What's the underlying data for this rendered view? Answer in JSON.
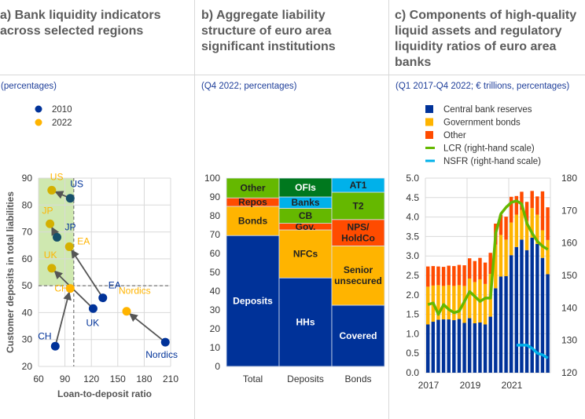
{
  "panels": {
    "a": {
      "title_lines": [
        "a) Bank liquidity indicators",
        "across selected regions"
      ],
      "subtitle": "(percentages)"
    },
    "b": {
      "title_lines": [
        "b) Aggregate liability",
        "structure of euro area",
        "significant institutions"
      ],
      "subtitle": "(Q4 2022; percentages)"
    },
    "c": {
      "title_lines": [
        "c) Components of high-quality",
        "liquid assets and regulatory",
        "liquidity ratios of euro area",
        "banks"
      ],
      "subtitle": "(Q1 2017-Q4 2022; € trillions, percentages)"
    }
  },
  "colors": {
    "navy": "#003299",
    "teal": "#17506a",
    "gold": "#d4b000",
    "yellow": "#ffb400",
    "orange": "#ff4b00",
    "green": "#65b800",
    "darkgreen": "#00781e",
    "cyan": "#00b1ea",
    "shade": "#cfe8b0",
    "grid": "#d9d9d9",
    "axis_text": "#333333"
  },
  "chart_data": [
    {
      "type": "scatter",
      "title": "Bank liquidity indicators across selected regions",
      "xlabel": "Loan-to-deposit ratio",
      "ylabel": "Customer deposits in total liabilities",
      "xlim": [
        60,
        210
      ],
      "ylim": [
        20,
        90
      ],
      "xticks": [
        60,
        90,
        120,
        150,
        180,
        210
      ],
      "yticks": [
        20,
        30,
        40,
        50,
        60,
        70,
        80,
        90
      ],
      "thresholds": {
        "x": 100,
        "y": 50
      },
      "shaded_region": {
        "x": [
          60,
          100
        ],
        "y": [
          50,
          90
        ]
      },
      "grid": true,
      "legend": {
        "position": "top-left",
        "entries": [
          {
            "label": "2010",
            "color": "#003299"
          },
          {
            "label": "2022",
            "color": "#ffb400"
          }
        ]
      },
      "points": [
        {
          "region": "US",
          "x2010": 96,
          "y2010": 82.5,
          "x2022": 75,
          "y2022": 85.5
        },
        {
          "region": "JP",
          "x2010": 81,
          "y2010": 68,
          "x2022": 73,
          "y2022": 73
        },
        {
          "region": "EA",
          "x2010": 133,
          "y2010": 45.5,
          "x2022": 95,
          "y2022": 64.5
        },
        {
          "region": "UK",
          "x2010": 122,
          "y2010": 41.5,
          "x2022": 75,
          "y2022": 56.5
        },
        {
          "region": "CH",
          "x2010": 79,
          "y2010": 27.5,
          "x2022": 96,
          "y2022": 49
        },
        {
          "region": "Nordics",
          "x2010": 204,
          "y2010": 29,
          "x2022": 160,
          "y2022": 40.5
        }
      ]
    },
    {
      "type": "bar",
      "title": "Aggregate liability structure of euro area significant institutions",
      "ylim": [
        0,
        100
      ],
      "yticks": [
        0,
        10,
        20,
        30,
        40,
        50,
        60,
        70,
        80,
        90,
        100
      ],
      "categories": [
        "Total",
        "Deposits",
        "Bonds"
      ],
      "stacks": [
        [
          {
            "label": "Deposits",
            "value": 69.5,
            "color": "#003299",
            "text": "#ffffff"
          },
          {
            "label": "Bonds",
            "value": 15.5,
            "color": "#ffb400",
            "text": "#222222"
          },
          {
            "label": "Repos",
            "value": 4.5,
            "color": "#ff4b00",
            "text": "#222222"
          },
          {
            "label": "Other",
            "value": 10.5,
            "color": "#65b800",
            "text": "#222222"
          }
        ],
        [
          {
            "label": "HHs",
            "value": 47,
            "color": "#003299",
            "text": "#ffffff"
          },
          {
            "label": "NFCs",
            "value": 25.5,
            "color": "#ffb400",
            "text": "#222222"
          },
          {
            "label": "Gov.",
            "value": 3.5,
            "color": "#ff4b00",
            "text": "#222222"
          },
          {
            "label": "CB",
            "value": 8,
            "color": "#65b800",
            "text": "#222222"
          },
          {
            "label": "Banks",
            "value": 6,
            "color": "#00b1ea",
            "text": "#222222"
          },
          {
            "label": "OFIs",
            "value": 10,
            "color": "#00781e",
            "text": "#ffffff"
          }
        ],
        [
          {
            "label": "Covered",
            "value": 32.5,
            "color": "#003299",
            "text": "#ffffff"
          },
          {
            "label": "Senior unsecured",
            "value": 31.5,
            "color": "#ffb400",
            "text": "#222222"
          },
          {
            "label": "NPS/ HoldCo",
            "value": 14,
            "color": "#ff4b00",
            "text": "#222222"
          },
          {
            "label": "T2",
            "value": 14.5,
            "color": "#65b800",
            "text": "#222222"
          },
          {
            "label": "AT1",
            "value": 7.5,
            "color": "#00b1ea",
            "text": "#222222"
          }
        ]
      ]
    },
    {
      "type": "bar",
      "title": "Components of high-quality liquid assets and regulatory liquidity ratios of euro area banks",
      "ylim": [
        0,
        5.0
      ],
      "y2lim": [
        120,
        180
      ],
      "yticks": [
        "0.0",
        "0.5",
        "1.0",
        "1.5",
        "2.0",
        "2.5",
        "3.0",
        "3.5",
        "4.0",
        "4.5",
        "5.0"
      ],
      "y2ticks": [
        120,
        130,
        140,
        150,
        160,
        170,
        180
      ],
      "xticks": [
        "2017",
        "2019",
        "2021"
      ],
      "quarters": 24,
      "legend": {
        "position": "top",
        "entries": [
          {
            "label": "Central bank reserves",
            "color": "#003299",
            "kind": "box"
          },
          {
            "label": "Government bonds",
            "color": "#ffb400",
            "kind": "box"
          },
          {
            "label": "Other",
            "color": "#ff4b00",
            "kind": "box"
          },
          {
            "label": "LCR (right-hand scale)",
            "color": "#65b800",
            "kind": "line"
          },
          {
            "label": "NSFR (right-hand scale)",
            "color": "#00b1ea",
            "kind": "line"
          }
        ]
      },
      "series": [
        {
          "name": "Central bank reserves",
          "values": [
            1.24,
            1.31,
            1.36,
            1.37,
            1.37,
            1.35,
            1.38,
            1.28,
            1.4,
            1.27,
            1.29,
            1.24,
            1.44,
            2.17,
            2.47,
            2.48,
            3.02,
            3.23,
            3.42,
            3.15,
            3.47,
            3.31,
            2.95,
            2.53
          ]
        },
        {
          "name": "Government bonds",
          "values": [
            0.97,
            0.93,
            0.89,
            0.86,
            0.88,
            0.88,
            0.87,
            0.95,
            1.02,
            1.06,
            1.11,
            1.04,
            1.1,
            1.12,
            1.07,
            0.94,
            0.84,
            0.83,
            0.76,
            0.75,
            0.76,
            0.75,
            0.71,
            0.88
          ]
        },
        {
          "name": "Other",
          "values": [
            0.52,
            0.5,
            0.48,
            0.49,
            0.5,
            0.51,
            0.52,
            0.53,
            0.52,
            0.54,
            0.55,
            0.55,
            0.54,
            0.54,
            0.52,
            0.59,
            0.66,
            0.48,
            0.47,
            0.49,
            0.44,
            0.47,
            1.0,
            0.84
          ]
        },
        {
          "name": "LCR (right-hand scale)",
          "axis": "right",
          "values": [
            141,
            141.5,
            138,
            141,
            139.5,
            138.5,
            139,
            142,
            145,
            143.5,
            142,
            143,
            143,
            163,
            169,
            171,
            172.5,
            173,
            172,
            166,
            163,
            160.5,
            159,
            158
          ]
        },
        {
          "name": "NSFR (right-hand scale)",
          "axis": "right",
          "start_index": 17,
          "values": [
            128.5,
            128.5,
            128.5,
            127.5,
            126,
            125.5,
            124.5
          ]
        }
      ]
    }
  ]
}
